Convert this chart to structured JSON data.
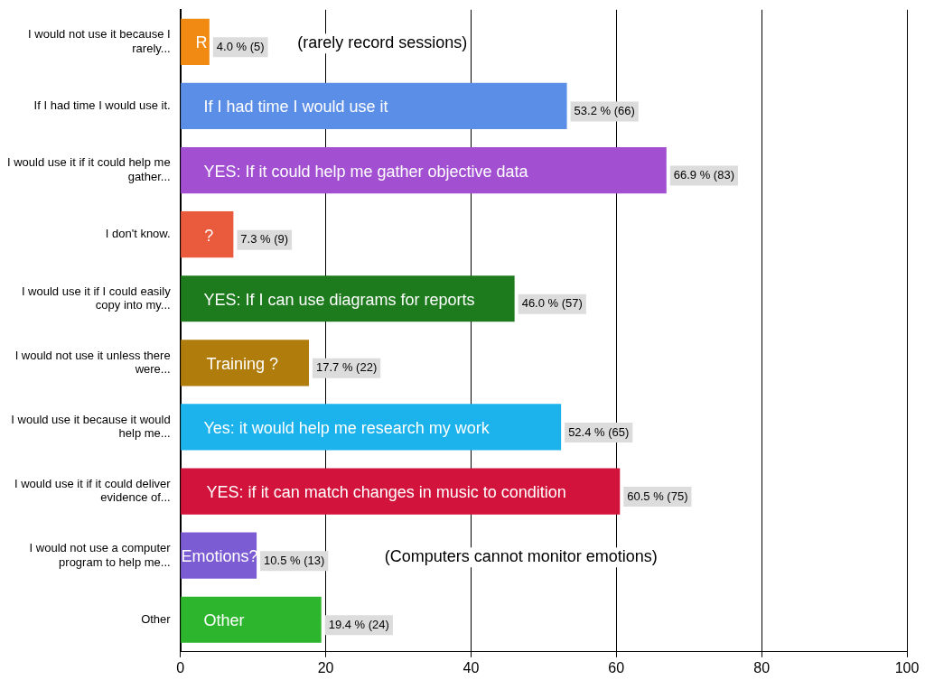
{
  "chart_data": {
    "type": "bar",
    "orientation": "horizontal",
    "categories": [
      "I would not use it because I rarely...",
      "If I had time I would use it.",
      "I would use it if it could help me gather...",
      "I don't know.",
      "I would use it if I could easily copy into my...",
      "I would not use it unless there were...",
      "I would use it because it would help me...",
      "I would use it if it could deliver evidence of...",
      "I would not use a computer program to help me...",
      "Other"
    ],
    "values": [
      4.0,
      53.2,
      66.9,
      7.3,
      46.0,
      17.7,
      52.4,
      60.5,
      10.5,
      19.4
    ],
    "colors": [
      "#f08a12",
      "#5b8ee6",
      "#a24fd2",
      "#ea5a3c",
      "#1d7a1d",
      "#b07c0c",
      "#1cb2ec",
      "#d2143c",
      "#7c5cd2",
      "#2db52d"
    ],
    "value_labels": [
      "4.0 % (5)",
      "53.2 % (66)",
      "66.9 % (83)",
      "7.3 % (9)",
      "46.0 % (57)",
      "17.7 % (22)",
      "52.4 % (65)",
      "60.5 % (75)",
      "10.5 % (13)",
      "19.4 % (24)"
    ],
    "xlim": [
      0,
      100
    ],
    "xticks": [
      0,
      20,
      40,
      60,
      80,
      100
    ],
    "grid": "x",
    "legend": false,
    "annotations": [
      {
        "text": "R",
        "x": 2.1,
        "y": "I would not use it because I rarely..."
      },
      "(rarely record sessions)",
      {
        "text": "If I had time I would use it",
        "x": 3.2,
        "y": "If I had time I would use it."
      },
      {
        "text": "YES: If it could help me gather objective data",
        "x": 3.2,
        "y": "I would use it if it could help me gather..."
      },
      {
        "text": "?",
        "x": 3.3,
        "y": "I don't know."
      },
      {
        "text": "YES: If I can use diagrams for reports",
        "x": 3.2,
        "y": "I would use it if I could easily copy into my..."
      },
      {
        "text": "Training ?",
        "x": 3.6,
        "y": "I would not use it unless there were..."
      },
      {
        "text": "Yes: it would help me research my work",
        "x": 3.2,
        "y": "I would use it because it would help me..."
      },
      {
        "text": "YES: if it can match changes in music to condition",
        "x": 3.6,
        "y": "I would use it if it could deliver evidence of..."
      },
      {
        "text": "Emotions?",
        "x": 0.1,
        "y": "I would not use a computer program to help me..."
      },
      "(Computers cannot monitor emotions)",
      {
        "text": "Other",
        "x": 3.2,
        "y": "Other"
      }
    ]
  }
}
